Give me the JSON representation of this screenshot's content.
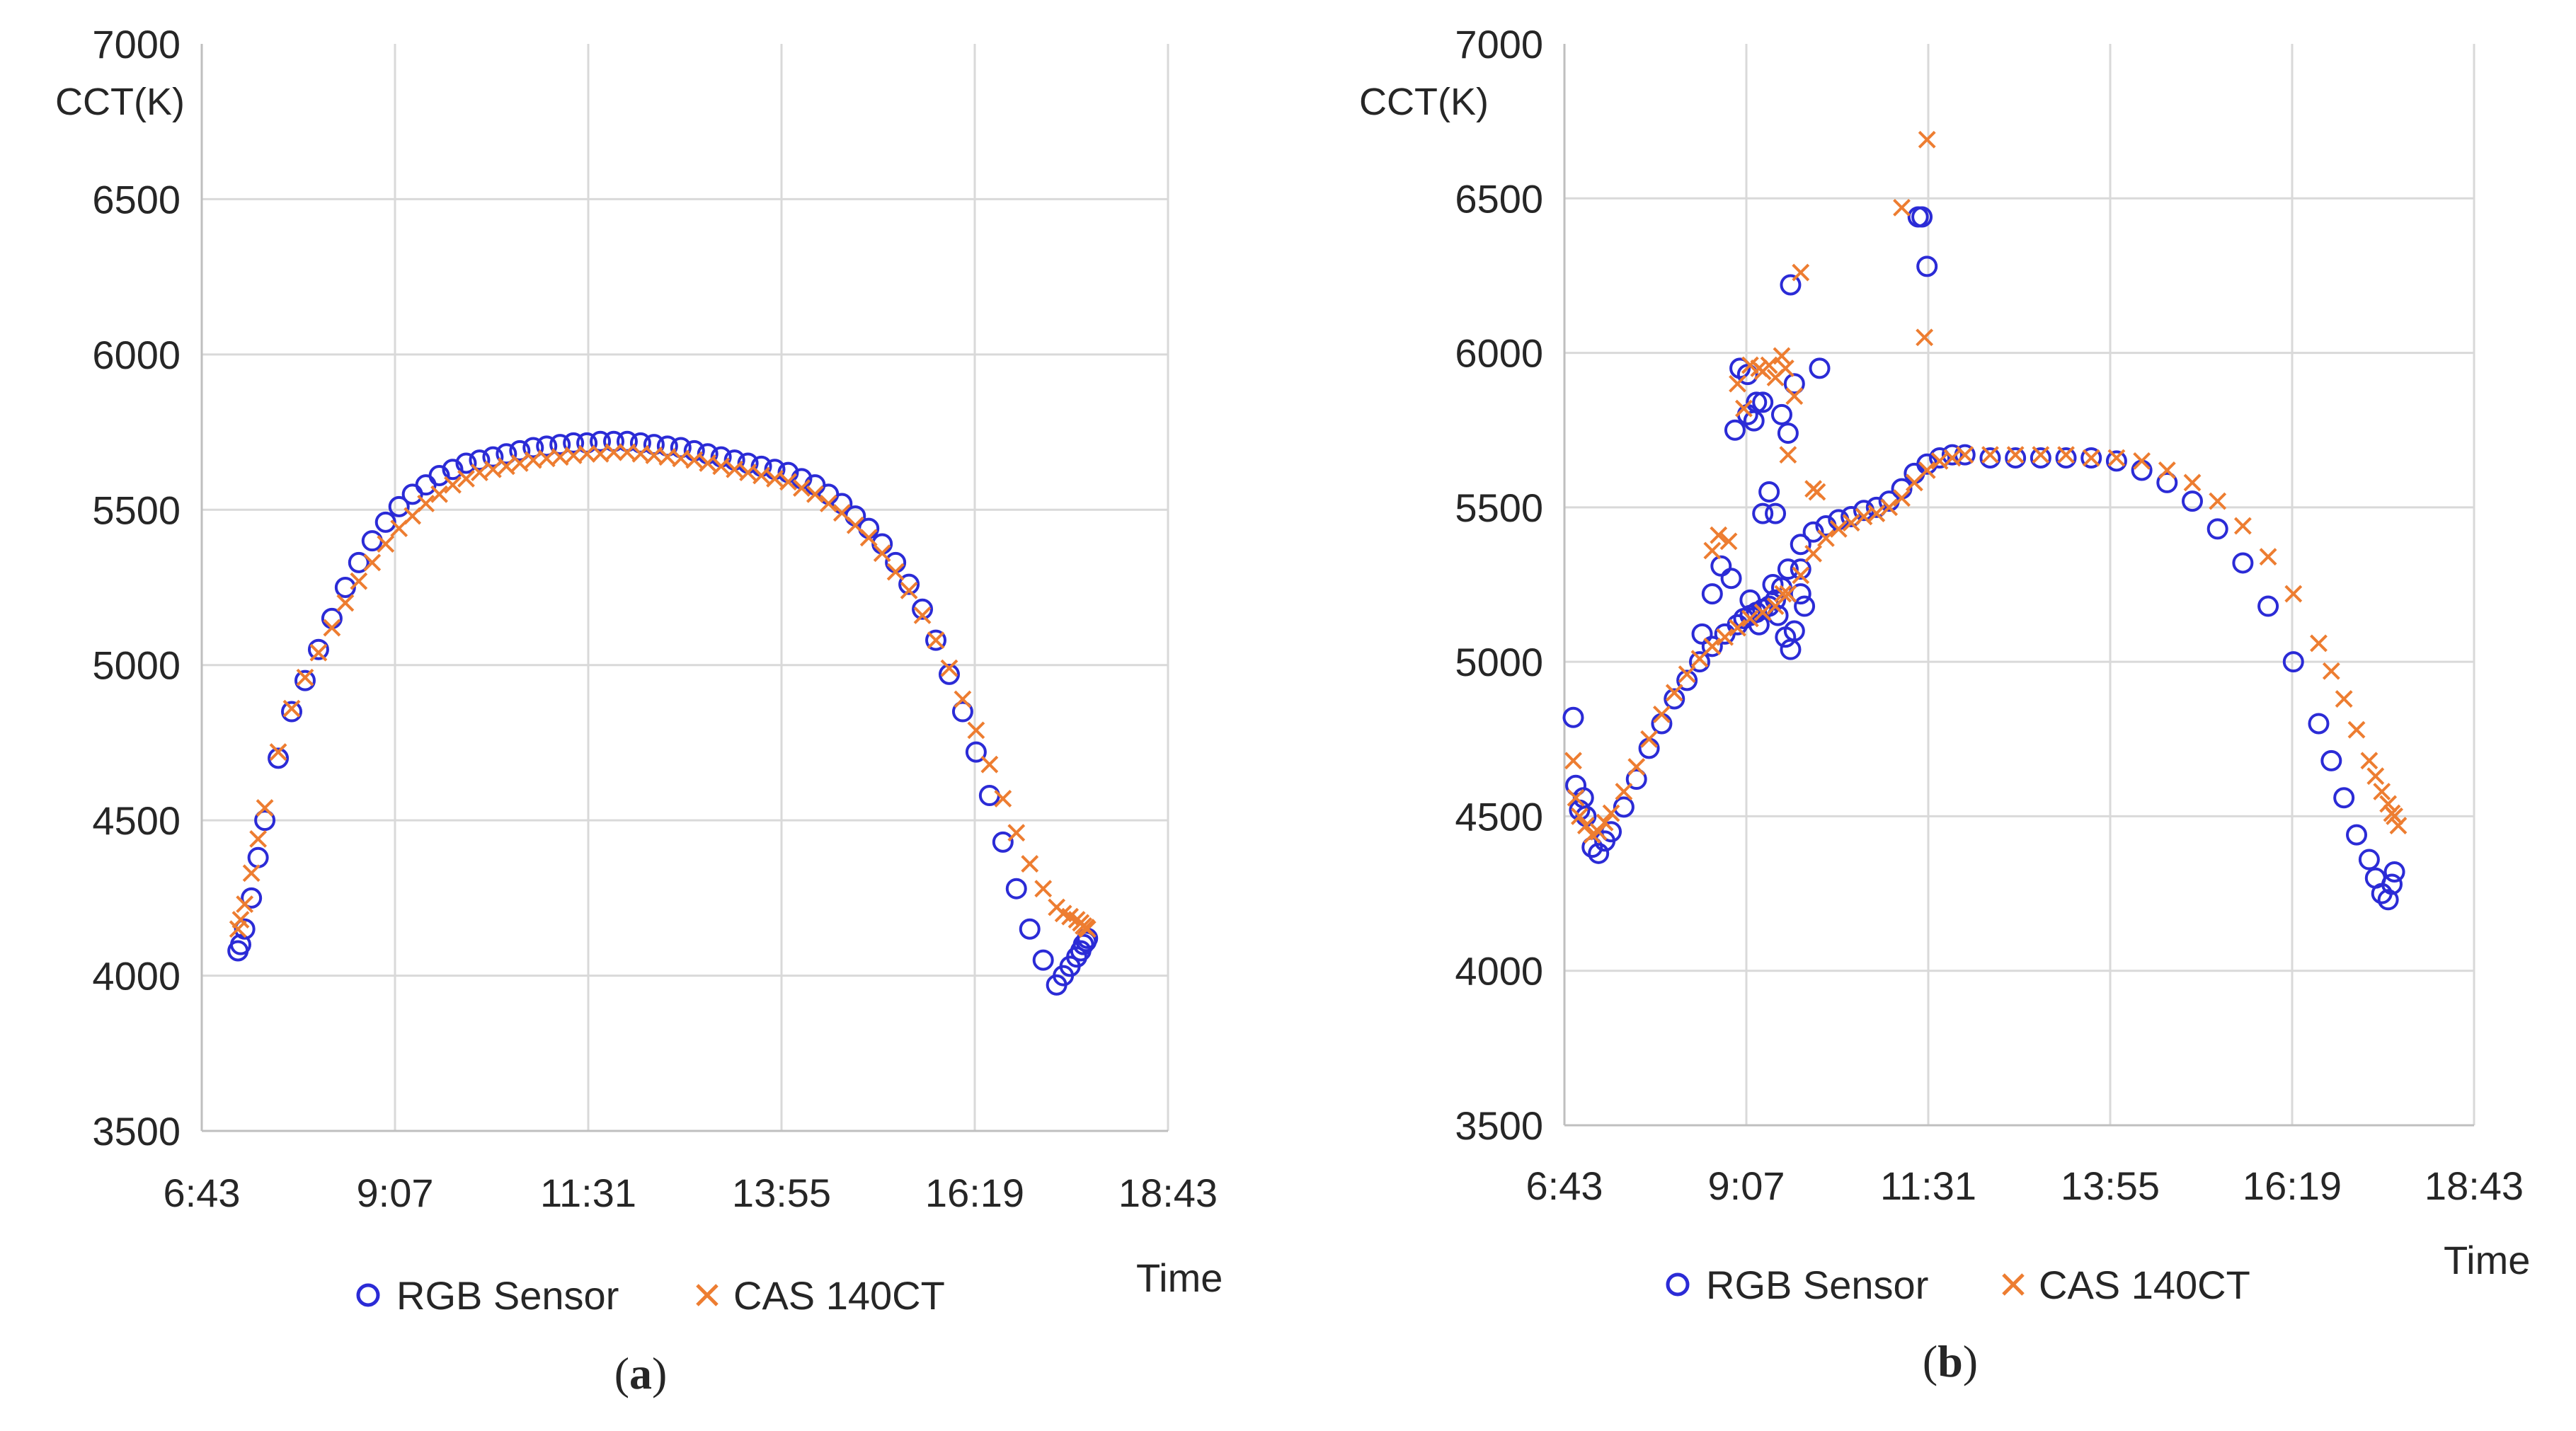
{
  "figure": {
    "panels": [
      {
        "id": "a",
        "caption_open": "(",
        "caption_letter": "a",
        "caption_close": ")"
      },
      {
        "id": "b",
        "caption_open": "(",
        "caption_letter": "b",
        "caption_close": ")"
      }
    ]
  },
  "chart_data": [
    {
      "type": "scatter",
      "panel": "a",
      "title": "",
      "ylabel": "CCT(K)",
      "xlabel": "Time",
      "ylim": [
        3500,
        7000
      ],
      "yticks": [
        3500,
        4000,
        4500,
        5000,
        5500,
        6000,
        6500,
        7000
      ],
      "xlim_minutes": [
        403,
        1123
      ],
      "xticks": [
        {
          "minutes": 403,
          "label": "6:43"
        },
        {
          "minutes": 547,
          "label": "9:07"
        },
        {
          "minutes": 691,
          "label": "11:31"
        },
        {
          "minutes": 835,
          "label": "13:55"
        },
        {
          "minutes": 979,
          "label": "16:19"
        },
        {
          "minutes": 1123,
          "label": "18:43"
        }
      ],
      "grid": true,
      "legend_position": "bottom",
      "series": [
        {
          "name": "RGB Sensor",
          "marker": "circle",
          "color": "#2b2bd6",
          "x": [
            430,
            432,
            435,
            440,
            445,
            450,
            460,
            470,
            480,
            490,
            500,
            510,
            520,
            530,
            540,
            550,
            560,
            570,
            580,
            590,
            600,
            610,
            620,
            630,
            640,
            650,
            660,
            670,
            680,
            690,
            700,
            710,
            720,
            730,
            740,
            750,
            760,
            770,
            780,
            790,
            800,
            810,
            820,
            830,
            840,
            850,
            860,
            870,
            880,
            890,
            900,
            910,
            920,
            930,
            940,
            950,
            960,
            970,
            980,
            990,
            1000,
            1010,
            1020,
            1030,
            1040,
            1045,
            1050,
            1055,
            1058,
            1060,
            1062,
            1063
          ],
          "y": [
            4080,
            4100,
            4150,
            4250,
            4380,
            4500,
            4700,
            4850,
            4950,
            5050,
            5150,
            5250,
            5330,
            5400,
            5460,
            5510,
            5550,
            5580,
            5610,
            5630,
            5650,
            5660,
            5670,
            5680,
            5690,
            5700,
            5705,
            5710,
            5715,
            5715,
            5720,
            5720,
            5720,
            5715,
            5710,
            5705,
            5700,
            5690,
            5680,
            5670,
            5660,
            5650,
            5640,
            5630,
            5620,
            5600,
            5580,
            5550,
            5520,
            5480,
            5440,
            5390,
            5330,
            5260,
            5180,
            5080,
            4970,
            4850,
            4720,
            4580,
            4430,
            4280,
            4150,
            4050,
            3970,
            4000,
            4030,
            4060,
            4080,
            4100,
            4110,
            4120
          ]
        },
        {
          "name": "CAS 140CT",
          "marker": "cross",
          "color": "#ed7d31",
          "x": [
            430,
            432,
            435,
            440,
            445,
            450,
            460,
            470,
            480,
            490,
            500,
            510,
            520,
            530,
            540,
            550,
            560,
            570,
            580,
            590,
            600,
            610,
            620,
            630,
            640,
            650,
            660,
            670,
            680,
            690,
            700,
            710,
            720,
            730,
            740,
            750,
            760,
            770,
            780,
            790,
            800,
            810,
            820,
            830,
            840,
            850,
            860,
            870,
            880,
            890,
            900,
            910,
            920,
            930,
            940,
            950,
            960,
            970,
            980,
            990,
            1000,
            1010,
            1020,
            1030,
            1040,
            1045,
            1050,
            1055,
            1058,
            1060,
            1062,
            1063
          ],
          "y": [
            4150,
            4180,
            4230,
            4330,
            4440,
            4540,
            4720,
            4860,
            4960,
            5040,
            5120,
            5200,
            5270,
            5330,
            5390,
            5440,
            5480,
            5520,
            5550,
            5580,
            5600,
            5620,
            5630,
            5640,
            5650,
            5660,
            5665,
            5670,
            5675,
            5680,
            5680,
            5685,
            5685,
            5680,
            5675,
            5670,
            5665,
            5660,
            5650,
            5640,
            5630,
            5620,
            5610,
            5600,
            5590,
            5570,
            5550,
            5520,
            5490,
            5450,
            5410,
            5360,
            5300,
            5240,
            5160,
            5080,
            4990,
            4890,
            4790,
            4680,
            4570,
            4460,
            4360,
            4280,
            4220,
            4200,
            4190,
            4180,
            4170,
            4160,
            4155,
            4150
          ]
        }
      ]
    },
    {
      "type": "scatter",
      "panel": "b",
      "title": "",
      "ylabel": "CCT(K)",
      "xlabel": "Time",
      "ylim": [
        3500,
        7000
      ],
      "yticks": [
        3500,
        4000,
        4500,
        5000,
        5500,
        6000,
        6500,
        7000
      ],
      "xlim_minutes": [
        403,
        1123
      ],
      "xticks": [
        {
          "minutes": 403,
          "label": "6:43"
        },
        {
          "minutes": 547,
          "label": "9:07"
        },
        {
          "minutes": 691,
          "label": "11:31"
        },
        {
          "minutes": 835,
          "label": "13:55"
        },
        {
          "minutes": 979,
          "label": "16:19"
        },
        {
          "minutes": 1123,
          "label": "18:43"
        }
      ],
      "grid": true,
      "legend_position": "bottom",
      "series": [
        {
          "name": "RGB Sensor",
          "marker": "circle",
          "color": "#2b2bd6",
          "x": [
            410,
            412,
            415,
            418,
            420,
            425,
            430,
            435,
            440,
            450,
            460,
            470,
            480,
            490,
            500,
            510,
            520,
            530,
            540,
            545,
            550,
            555,
            560,
            565,
            570,
            575,
            580,
            590,
            600,
            610,
            620,
            630,
            640,
            650,
            660,
            670,
            680,
            690,
            700,
            710,
            720,
            740,
            760,
            780,
            800,
            820,
            840,
            860,
            880,
            900,
            920,
            940,
            960,
            980,
            1000,
            1010,
            1020,
            1030,
            1040,
            1045,
            1050,
            1055,
            1058,
            1060,
            538,
            542,
            548,
            553,
            555,
            560,
            565,
            570,
            575,
            580,
            582,
            585,
            590,
            605,
            512,
            520,
            527,
            535,
            683,
            686,
            690,
            560,
            578,
            582,
            585,
            572,
            548,
            557,
            590,
            593,
            550,
            568
          ],
          "y": [
            4820,
            4600,
            4520,
            4560,
            4500,
            4400,
            4380,
            4420,
            4450,
            4530,
            4620,
            4720,
            4800,
            4880,
            4940,
            5000,
            5050,
            5090,
            5120,
            5140,
            5150,
            5160,
            5170,
            5180,
            5200,
            5240,
            5300,
            5380,
            5420,
            5440,
            5460,
            5470,
            5490,
            5500,
            5520,
            5560,
            5610,
            5640,
            5660,
            5670,
            5670,
            5660,
            5660,
            5660,
            5660,
            5660,
            5650,
            5620,
            5580,
            5520,
            5430,
            5320,
            5180,
            5000,
            4800,
            4680,
            4560,
            4440,
            4360,
            4300,
            4250,
            4230,
            4280,
            4320,
            5750,
            5950,
            5930,
            5780,
            5840,
            5840,
            5550,
            5480,
            5800,
            5740,
            6220,
            5900,
            5300,
            5950,
            5090,
            5220,
            5310,
            5270,
            6440,
            6440,
            6280,
            5480,
            5080,
            5040,
            5100,
            5150,
            5800,
            5120,
            5220,
            5180,
            5200,
            5250
          ]
        },
        {
          "name": "CAS 140CT",
          "marker": "cross",
          "color": "#ed7d31",
          "x": [
            410,
            412,
            415,
            420,
            425,
            430,
            435,
            440,
            450,
            460,
            470,
            480,
            490,
            500,
            510,
            520,
            530,
            540,
            550,
            560,
            570,
            580,
            590,
            600,
            610,
            620,
            630,
            640,
            650,
            660,
            670,
            680,
            690,
            700,
            710,
            720,
            740,
            760,
            780,
            800,
            820,
            840,
            860,
            880,
            900,
            920,
            940,
            960,
            980,
            1000,
            1010,
            1020,
            1030,
            1040,
            1045,
            1050,
            1055,
            1058,
            1060,
            1063,
            545,
            550,
            557,
            560,
            565,
            570,
            575,
            580,
            585,
            590,
            600,
            603,
            670,
            688,
            690,
            540,
            533,
            520,
            525,
            576,
            578
          ],
          "y": [
            4680,
            4560,
            4500,
            4470,
            4440,
            4450,
            4480,
            4510,
            4580,
            4660,
            4750,
            4830,
            4900,
            4960,
            5010,
            5050,
            5080,
            5110,
            5140,
            5160,
            5180,
            5220,
            5280,
            5350,
            5400,
            5430,
            5450,
            5470,
            5480,
            5500,
            5530,
            5580,
            5620,
            5650,
            5660,
            5670,
            5670,
            5670,
            5670,
            5670,
            5660,
            5660,
            5650,
            5620,
            5580,
            5520,
            5440,
            5340,
            5220,
            5060,
            4970,
            4880,
            4780,
            4680,
            4630,
            4580,
            4540,
            4510,
            4500,
            4470,
            5820,
            5960,
            5950,
            5940,
            5960,
            5920,
            5990,
            5670,
            5860,
            6260,
            5560,
            5550,
            6470,
            6050,
            6690,
            5900,
            5390,
            5360,
            5410,
            5220,
            5950
          ]
        }
      ]
    }
  ]
}
